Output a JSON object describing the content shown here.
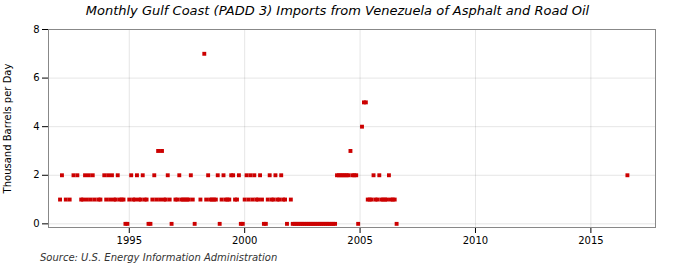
{
  "chart_data": {
    "type": "scatter",
    "title": "Monthly Gulf Coast (PADD 3) Imports from Venezuela of Asphalt and Road Oil",
    "ylabel": "Thousand Barrels per Day",
    "source": "Source: U.S. Energy Information Administration",
    "color": "#cc0000",
    "marker": "square",
    "grid": true,
    "xlim": [
      1991.5,
      2017.8
    ],
    "ylim": [
      -0.15,
      8
    ],
    "xticks": [
      1995,
      2000,
      2005,
      2010,
      2015
    ],
    "yticks": [
      0,
      2,
      4,
      6,
      8
    ],
    "x": [
      1992.0,
      1992.083,
      1992.25,
      1992.417,
      1992.583,
      1992.75,
      1992.917,
      1993.0,
      1993.083,
      1993.167,
      1993.25,
      1993.333,
      1993.417,
      1993.5,
      1993.667,
      1993.75,
      1993.917,
      1994.0,
      1994.083,
      1994.167,
      1994.25,
      1994.333,
      1994.417,
      1994.5,
      1994.583,
      1994.667,
      1994.75,
      1994.833,
      1994.917,
      1995.0,
      1995.083,
      1995.167,
      1995.25,
      1995.333,
      1995.417,
      1995.5,
      1995.583,
      1995.667,
      1995.75,
      1995.833,
      1995.917,
      1996.0,
      1996.083,
      1996.167,
      1996.25,
      1996.333,
      1996.417,
      1996.5,
      1996.583,
      1996.667,
      1996.75,
      1996.833,
      1997.0,
      1997.083,
      1997.167,
      1997.25,
      1997.333,
      1997.417,
      1997.5,
      1997.583,
      1997.667,
      1997.75,
      1997.833,
      1998.083,
      1998.25,
      1998.333,
      1998.417,
      1998.5,
      1998.583,
      1998.667,
      1998.75,
      1998.833,
      1998.917,
      1999.0,
      1999.083,
      1999.167,
      1999.25,
      1999.333,
      1999.417,
      1999.5,
      1999.583,
      1999.667,
      1999.75,
      1999.833,
      1999.917,
      2000.0,
      2000.083,
      2000.167,
      2000.25,
      2000.333,
      2000.417,
      2000.5,
      2000.583,
      2000.667,
      2000.75,
      2000.833,
      2000.917,
      2001.0,
      2001.083,
      2001.167,
      2001.25,
      2001.333,
      2001.417,
      2001.5,
      2001.583,
      2001.667,
      2001.75,
      2001.833,
      2002.0,
      2002.083,
      2002.167,
      2002.25,
      2002.333,
      2002.417,
      2002.5,
      2002.583,
      2002.667,
      2002.75,
      2002.833,
      2002.917,
      2003.0,
      2003.083,
      2003.167,
      2003.25,
      2003.333,
      2003.417,
      2003.5,
      2003.583,
      2003.667,
      2003.75,
      2003.833,
      2003.917,
      2004.0,
      2004.083,
      2004.167,
      2004.25,
      2004.333,
      2004.417,
      2004.5,
      2004.583,
      2004.667,
      2004.75,
      2004.833,
      2004.917,
      2005.083,
      2005.167,
      2005.25,
      2005.333,
      2005.417,
      2005.5,
      2005.583,
      2005.667,
      2005.75,
      2005.833,
      2005.917,
      2006.0,
      2006.083,
      2006.167,
      2006.25,
      2006.333,
      2006.417,
      2006.5,
      2006.583,
      2016.583
    ],
    "values": [
      1,
      2,
      1,
      1,
      2,
      2,
      1,
      1,
      2,
      1,
      2,
      1,
      2,
      1,
      1,
      1,
      2,
      1,
      2,
      1,
      2,
      1,
      1,
      2,
      1,
      1,
      1,
      0,
      0,
      1,
      2,
      1,
      1,
      2,
      1,
      1,
      2,
      1,
      1,
      0,
      0,
      1,
      2,
      1,
      3,
      1,
      3,
      1,
      1,
      2,
      1,
      0,
      1,
      1,
      2,
      1,
      1,
      1,
      1,
      1,
      2,
      1,
      0,
      1,
      7,
      1,
      2,
      1,
      1,
      1,
      1,
      2,
      0,
      1,
      2,
      1,
      1,
      1,
      2,
      2,
      1,
      1,
      2,
      0,
      0,
      1,
      2,
      1,
      2,
      1,
      2,
      1,
      1,
      2,
      1,
      0,
      0,
      1,
      2,
      1,
      1,
      2,
      1,
      1,
      2,
      1,
      1,
      0,
      1,
      0,
      0,
      0,
      0,
      0,
      0,
      0,
      0,
      0,
      0,
      0,
      0,
      0,
      0,
      0,
      0,
      0,
      0,
      0,
      0,
      0,
      0,
      0,
      2,
      2,
      2,
      2,
      2,
      2,
      2,
      3,
      2,
      2,
      2,
      0,
      4,
      5,
      5,
      1,
      1,
      1,
      2,
      1,
      1,
      2,
      1,
      1,
      1,
      1,
      2,
      1,
      1,
      1,
      0,
      2
    ]
  }
}
